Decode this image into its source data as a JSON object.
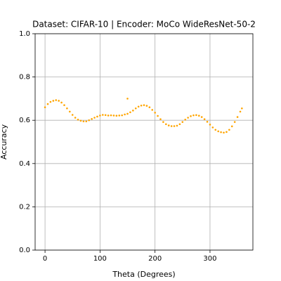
{
  "chart_data": {
    "type": "scatter",
    "title": "Dataset: CIFAR-10 | Encoder: MoCo WideResNet-50-2",
    "x_label": "Theta (Degrees)",
    "y_label": "Accuracy",
    "color": "#ffa500",
    "grid": true,
    "x": [
      0,
      5,
      10,
      15,
      20,
      25,
      30,
      35,
      40,
      45,
      50,
      55,
      60,
      65,
      70,
      75,
      80,
      85,
      90,
      95,
      100,
      105,
      110,
      115,
      120,
      125,
      130,
      135,
      140,
      145,
      150,
      155,
      160,
      165,
      170,
      175,
      180,
      185,
      190,
      195,
      200,
      205,
      210,
      215,
      220,
      225,
      230,
      235,
      240,
      245,
      250,
      255,
      260,
      265,
      270,
      275,
      280,
      285,
      290,
      295,
      300,
      305,
      310,
      315,
      320,
      325,
      330,
      335,
      340,
      345,
      350,
      355,
      358,
      150
    ],
    "values": [
      0.66,
      0.675,
      0.685,
      0.69,
      0.693,
      0.69,
      0.682,
      0.67,
      0.655,
      0.64,
      0.625,
      0.612,
      0.603,
      0.598,
      0.595,
      0.595,
      0.6,
      0.606,
      0.612,
      0.617,
      0.622,
      0.625,
      0.624,
      0.622,
      0.623,
      0.622,
      0.621,
      0.622,
      0.623,
      0.627,
      0.63,
      0.637,
      0.645,
      0.655,
      0.663,
      0.668,
      0.67,
      0.667,
      0.66,
      0.648,
      0.635,
      0.62,
      0.605,
      0.592,
      0.582,
      0.576,
      0.573,
      0.573,
      0.575,
      0.582,
      0.592,
      0.603,
      0.612,
      0.619,
      0.623,
      0.624,
      0.621,
      0.615,
      0.605,
      0.593,
      0.58,
      0.567,
      0.556,
      0.549,
      0.545,
      0.543,
      0.546,
      0.556,
      0.572,
      0.592,
      0.615,
      0.64,
      0.655,
      0.7
    ],
    "xlim": [
      -18,
      378
    ],
    "ylim": [
      0,
      1
    ],
    "xticks": [
      0,
      100,
      200,
      300
    ],
    "yticks": [
      {
        "value": 0,
        "label": "0.0"
      },
      {
        "value": 0.2,
        "label": "0.2"
      },
      {
        "value": 0.4,
        "label": "0.4"
      },
      {
        "value": 0.6,
        "label": "0.6"
      },
      {
        "value": 0.8,
        "label": "0.8"
      },
      {
        "value": 1,
        "label": "1.0"
      }
    ]
  }
}
